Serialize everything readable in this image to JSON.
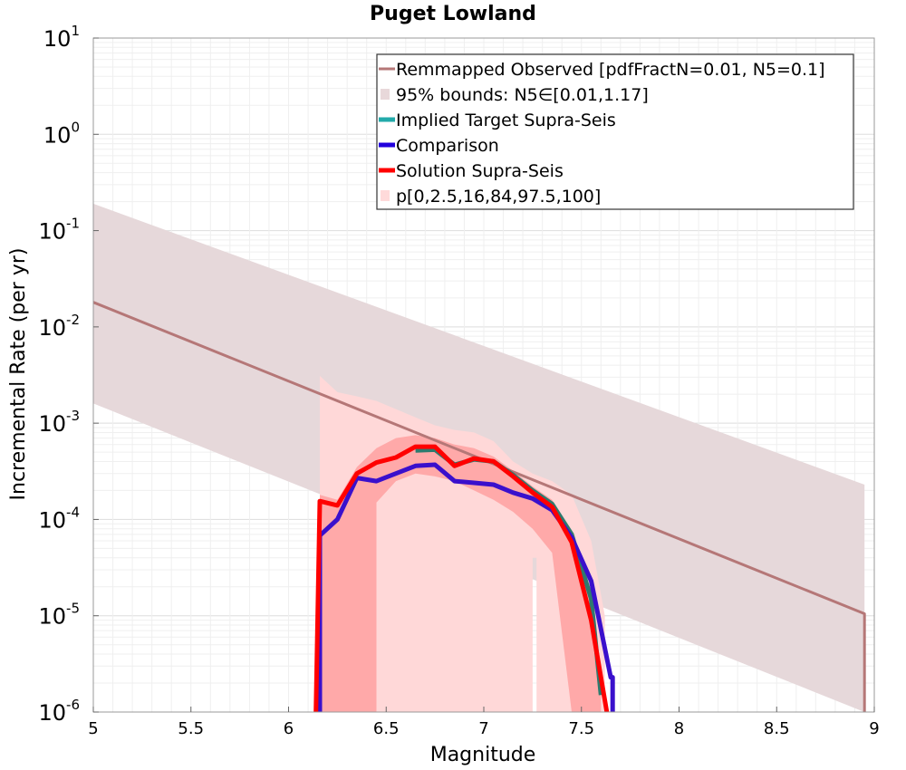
{
  "chart_data": {
    "type": "line",
    "title": "Puget Lowland",
    "xlabel": "Magnitude",
    "ylabel": "Incremental Rate (per yr)",
    "xlim": [
      5,
      9
    ],
    "ylim": [
      1e-06,
      10
    ],
    "yscale": "log",
    "grid": true,
    "legend_position": "top-right",
    "x_ticks": [
      {
        "value": 5,
        "label": "5"
      },
      {
        "value": 5.5,
        "label": "5.5"
      },
      {
        "value": 6,
        "label": "6"
      },
      {
        "value": 6.5,
        "label": "6.5"
      },
      {
        "value": 7,
        "label": "7"
      },
      {
        "value": 7.5,
        "label": "7.5"
      },
      {
        "value": 8,
        "label": "8"
      },
      {
        "value": 8.5,
        "label": "8.5"
      },
      {
        "value": 9,
        "label": "9"
      }
    ],
    "y_ticks": [
      {
        "exp": -6,
        "base": "10",
        "sup": "-6"
      },
      {
        "exp": -5,
        "base": "10",
        "sup": "-5"
      },
      {
        "exp": -4,
        "base": "10",
        "sup": "-4"
      },
      {
        "exp": -3,
        "base": "10",
        "sup": "-3"
      },
      {
        "exp": -2,
        "base": "10",
        "sup": "-2"
      },
      {
        "exp": -1,
        "base": "10",
        "sup": "-1"
      },
      {
        "exp": 0,
        "base": "10",
        "sup": "0"
      },
      {
        "exp": 1,
        "base": "10",
        "sup": "1"
      }
    ],
    "legend": [
      {
        "label": "Remmapped Observed [pdfFractN=0.01, N5=0.1]",
        "color": "#b57777",
        "kind": "line"
      },
      {
        "label": "95% bounds: N5∈[0.01,1.17]",
        "color": "#e8d8da",
        "kind": "patch"
      },
      {
        "label": "Implied Target Supra-Seis",
        "color": "#22aaaa",
        "kind": "line"
      },
      {
        "label": "Comparison",
        "color": "#2200dd",
        "kind": "line"
      },
      {
        "label": "Solution Supra-Seis",
        "color": "#ff0000",
        "kind": "line"
      },
      {
        "label": "p[0,2.5,16,84,97.5,100]",
        "color": "#ffdada",
        "kind": "patch"
      }
    ],
    "series": [
      {
        "name": "Remmapped Observed [pdfFractN=0.01, N5=0.1]",
        "color": "#b57777",
        "x": [
          5.0,
          8.95,
          8.95
        ],
        "y": [
          0.018,
          1.05e-05,
          1e-06
        ]
      },
      {
        "name": "Implied Target Supra-Seis",
        "color": "#2e7a6e",
        "x": [
          6.65,
          6.75,
          6.85,
          6.95,
          7.05,
          7.15,
          7.25,
          7.35,
          7.45,
          7.55,
          7.6
        ],
        "y": [
          0.00052,
          0.00053,
          0.00037,
          0.00042,
          0.0004,
          0.00029,
          0.0002,
          0.000145,
          7e-05,
          1.5e-05,
          1.5e-06
        ]
      },
      {
        "name": "Comparison",
        "color": "#3a10cc",
        "x": [
          6.16,
          6.16,
          6.25,
          6.35,
          6.45,
          6.55,
          6.65,
          6.75,
          6.85,
          6.95,
          7.05,
          7.15,
          7.25,
          7.35,
          7.45,
          7.55,
          7.65,
          7.66,
          7.66
        ],
        "y": [
          1e-06,
          6.8e-05,
          0.0001,
          0.00027,
          0.00025,
          0.0003,
          0.00036,
          0.00037,
          0.00025,
          0.00024,
          0.00023,
          0.00019,
          0.000165,
          0.000125,
          6.5e-05,
          2.3e-05,
          2.3e-06,
          2.3e-06,
          1e-06
        ]
      },
      {
        "name": "Solution Supra-Seis",
        "color": "#ff0000",
        "x": [
          6.14,
          6.16,
          6.25,
          6.35,
          6.45,
          6.55,
          6.65,
          6.75,
          6.85,
          6.95,
          7.05,
          7.15,
          7.25,
          7.35,
          7.45,
          7.55,
          7.63
        ],
        "y": [
          1e-06,
          0.000155,
          0.00014,
          0.0003,
          0.00039,
          0.00044,
          0.00057,
          0.00057,
          0.00036,
          0.00043,
          0.0004,
          0.00028,
          0.00019,
          0.000135,
          5.8e-05,
          9e-06,
          1e-06
        ]
      }
    ],
    "bands": [
      {
        "name": "95% bounds: N5∈[0.01,1.17]",
        "color": "#e6d8da",
        "x": [
          5.0,
          8.95,
          8.95,
          5.0
        ],
        "y": [
          0.19,
          0.00023,
          1e-06,
          0.0016
        ]
      },
      {
        "name": "p[0,2.5,16,84,97.5,100] outer",
        "color": "#ffd8d8",
        "x": [
          6.16,
          6.25,
          6.35,
          6.45,
          6.55,
          6.65,
          6.75,
          6.85,
          6.95,
          7.05,
          7.15,
          7.25,
          7.35,
          7.45,
          7.55,
          7.62,
          7.62,
          7.58,
          7.5,
          7.45,
          7.27,
          7.27,
          7.25,
          7.25,
          7.15,
          7.05,
          6.95,
          6.85,
          6.75,
          6.65,
          6.55,
          6.45,
          6.35,
          6.25,
          6.16
        ],
        "y": [
          0.0031,
          0.0021,
          0.0019,
          0.0017,
          0.0014,
          0.00115,
          0.00095,
          0.00085,
          0.0008,
          0.00065,
          0.0004,
          0.0003,
          0.00025,
          0.00018,
          6e-05,
          1e-05,
          1e-06,
          1e-06,
          1e-06,
          1e-06,
          1e-06,
          4e-05,
          4e-05,
          1e-06,
          1e-06,
          1e-06,
          1e-06,
          1e-06,
          1e-06,
          1e-06,
          1e-06,
          1e-06,
          1e-06,
          1e-06,
          1e-06
        ]
      },
      {
        "name": "p[0,2.5,16,84,97.5,100] inner",
        "color": "#ffa9a9",
        "x": [
          6.16,
          6.25,
          6.35,
          6.45,
          6.55,
          6.65,
          6.75,
          6.85,
          6.95,
          7.05,
          7.15,
          7.25,
          7.35,
          7.45,
          7.55,
          7.6,
          7.6,
          7.5,
          7.45,
          7.35,
          7.25,
          7.15,
          7.05,
          6.95,
          6.85,
          6.75,
          6.65,
          6.55,
          6.45,
          6.45,
          6.16
        ],
        "y": [
          0.00018,
          0.00016,
          0.00035,
          0.00055,
          0.0007,
          0.00075,
          0.0007,
          0.0006,
          0.00055,
          0.00045,
          0.00032,
          0.00022,
          0.00016,
          7.5e-05,
          1.5e-05,
          3e-06,
          1e-06,
          1e-06,
          1e-06,
          4.5e-05,
          8e-05,
          0.00012,
          0.00016,
          0.0002,
          0.00025,
          0.00028,
          0.0003,
          0.00025,
          0.00015,
          1e-06,
          1e-06
        ]
      }
    ]
  }
}
